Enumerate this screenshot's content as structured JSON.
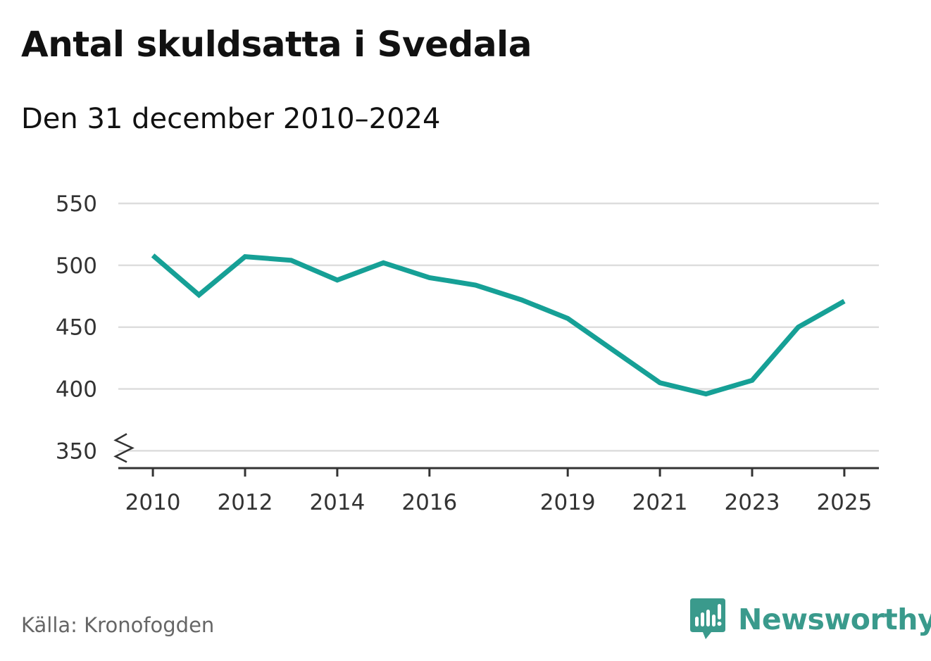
{
  "header": {
    "title": "Antal skuldsatta i Svedala",
    "subtitle": "Den 31 december 2010–2024"
  },
  "footer": {
    "source": "Källa: Kronofogden",
    "brand": "Newsworthy"
  },
  "colors": {
    "line": "#16a096",
    "grid": "#dddddd",
    "axis": "#333333",
    "brand": "#3a9a8c"
  },
  "chart_data": {
    "type": "line",
    "title": "Antal skuldsatta i Svedala",
    "subtitle": "Den 31 december 2010–2024",
    "xlabel": "",
    "ylabel": "",
    "x": [
      2010,
      2011,
      2012,
      2013,
      2014,
      2015,
      2016,
      2017,
      2018,
      2019,
      2020,
      2021,
      2022,
      2023,
      2024,
      2025
    ],
    "series": [
      {
        "name": "Antal skuldsatta",
        "values": [
          508,
          476,
          507,
          504,
          488,
          502,
          490,
          484,
          472,
          457,
          431,
          405,
          396,
          407,
          450,
          471
        ]
      }
    ],
    "x_ticks": [
      "2010",
      "2012",
      "2014",
      "2016",
      "2019",
      "2021",
      "2023",
      "2025"
    ],
    "y_ticks": [
      "350",
      "400",
      "450",
      "500",
      "550"
    ],
    "xlim": [
      2009.25,
      2025.75
    ],
    "ylim": [
      336,
      550
    ],
    "grid": true,
    "y_axis_break": true
  }
}
